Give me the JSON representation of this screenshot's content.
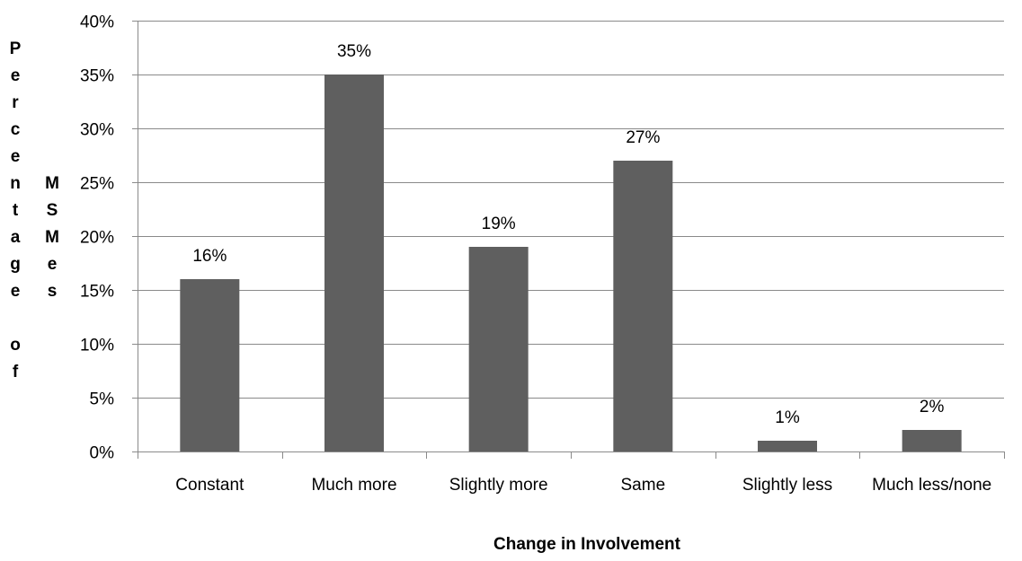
{
  "chart_data": {
    "type": "bar",
    "categories": [
      "Constant",
      "Much more",
      "Slightly more",
      "Same",
      "Slightly less",
      "Much less/none"
    ],
    "values": [
      16,
      35,
      19,
      27,
      1,
      2
    ],
    "data_labels": [
      "16%",
      "35%",
      "19%",
      "27%",
      "1%",
      "2%"
    ],
    "title": "",
    "xlabel": "Change in Involvement",
    "ylabel": "Percentage of MSMes",
    "ylim": [
      0,
      40
    ],
    "yticks": [
      0,
      5,
      10,
      15,
      20,
      25,
      30,
      35,
      40
    ],
    "ytick_labels": [
      "0%",
      "5%",
      "10%",
      "15%",
      "20%",
      "25%",
      "30%",
      "35%",
      "40%"
    ],
    "grid": true,
    "legend": "none",
    "colors": {
      "bar": "#5f5f5f",
      "grid": "#8a8a8a",
      "axis": "#8a8a8a"
    }
  }
}
